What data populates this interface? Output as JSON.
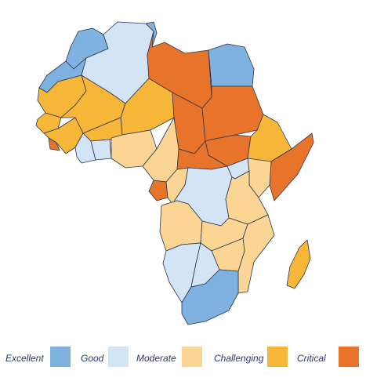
{
  "legend": {
    "items": [
      {
        "label": "Excellent",
        "color": "#7fb2e0"
      },
      {
        "label": "Good",
        "color": "#d3e4f5"
      },
      {
        "label": "Moderate",
        "color": "#fad593"
      },
      {
        "label": "Challenging",
        "color": "#f6b738"
      },
      {
        "label": "Critical",
        "color": "#e8742b"
      }
    ]
  },
  "regions": [
    {
      "name": "Morocco",
      "level": "Excellent"
    },
    {
      "name": "Western Sahara",
      "level": "Excellent"
    },
    {
      "name": "Algeria",
      "level": "Good"
    },
    {
      "name": "Tunisia",
      "level": "Excellent"
    },
    {
      "name": "Libya",
      "level": "Critical"
    },
    {
      "name": "Egypt",
      "level": "Excellent"
    },
    {
      "name": "Mauritania",
      "level": "Challenging"
    },
    {
      "name": "Mali",
      "level": "Challenging"
    },
    {
      "name": "Niger",
      "level": "Challenging"
    },
    {
      "name": "Chad",
      "level": "Critical"
    },
    {
      "name": "Sudan",
      "level": "Critical"
    },
    {
      "name": "South Sudan",
      "level": "Critical"
    },
    {
      "name": "Ethiopia",
      "level": "Challenging"
    },
    {
      "name": "Somalia",
      "level": "Critical"
    },
    {
      "name": "Senegal",
      "level": "Challenging"
    },
    {
      "name": "Guinea",
      "level": "Challenging"
    },
    {
      "name": "Sierra Leone",
      "level": "Critical"
    },
    {
      "name": "Burkina Faso",
      "level": "Challenging"
    },
    {
      "name": "Ivory Coast",
      "level": "Good"
    },
    {
      "name": "Ghana",
      "level": "Good"
    },
    {
      "name": "Nigeria",
      "level": "Moderate"
    },
    {
      "name": "Cameroon",
      "level": "Moderate"
    },
    {
      "name": "Central African Republic",
      "level": "Critical"
    },
    {
      "name": "DR Congo",
      "level": "Critical"
    },
    {
      "name": "Congo",
      "level": "Moderate"
    },
    {
      "name": "Gabon",
      "level": "Good"
    },
    {
      "name": "Kenya",
      "level": "Good"
    },
    {
      "name": "Uganda",
      "level": "Moderate"
    },
    {
      "name": "Tanzania",
      "level": "Moderate"
    },
    {
      "name": "Angola",
      "level": "Moderate"
    },
    {
      "name": "Zambia",
      "level": "Moderate"
    },
    {
      "name": "Mozambique",
      "level": "Moderate"
    },
    {
      "name": "Zimbabwe",
      "level": "Moderate"
    },
    {
      "name": "Namibia",
      "level": "Good"
    },
    {
      "name": "Botswana",
      "level": "Good"
    },
    {
      "name": "South Africa",
      "level": "Excellent"
    },
    {
      "name": "Madagascar",
      "level": "Challenging"
    }
  ]
}
